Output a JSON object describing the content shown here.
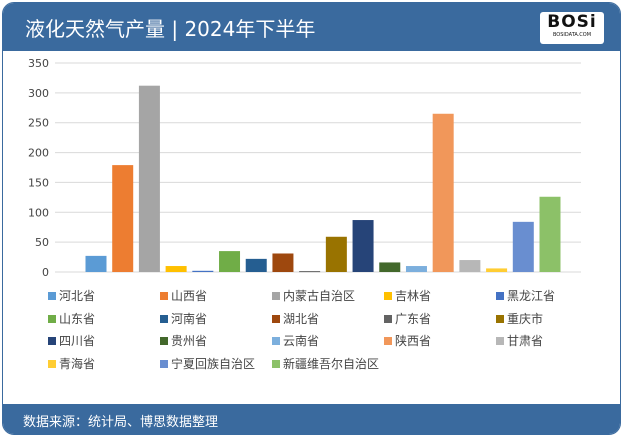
{
  "header": {
    "title": "液化天然气产量 | 2024年下半年",
    "logo_text": "BOSi",
    "logo_sub": "BOSIDATA.COM"
  },
  "footer": {
    "source": "数据来源：统计局、博思数据整理"
  },
  "chart_data": {
    "type": "bar",
    "title": "",
    "xlabel": "",
    "ylabel": "",
    "ylim": [
      0,
      350
    ],
    "yticks": [
      0,
      50,
      100,
      150,
      200,
      250,
      300,
      350
    ],
    "grid": true,
    "legend_position": "bottom",
    "series": [
      {
        "name": "河北省",
        "value": 27,
        "color": "#5b9bd5"
      },
      {
        "name": "山西省",
        "value": 179,
        "color": "#ed7d31"
      },
      {
        "name": "内蒙古自治区",
        "value": 312,
        "color": "#a5a5a5"
      },
      {
        "name": "吉林省",
        "value": 10,
        "color": "#ffc000"
      },
      {
        "name": "黑龙江省",
        "value": 2,
        "color": "#4472c4"
      },
      {
        "name": "山东省",
        "value": 35,
        "color": "#70ad47"
      },
      {
        "name": "河南省",
        "value": 22,
        "color": "#255e91"
      },
      {
        "name": "湖北省",
        "value": 31,
        "color": "#9e480e"
      },
      {
        "name": "广东省",
        "value": 1.5,
        "color": "#636363"
      },
      {
        "name": "重庆市",
        "value": 59,
        "color": "#997300"
      },
      {
        "name": "四川省",
        "value": 87,
        "color": "#264478"
      },
      {
        "name": "贵州省",
        "value": 16,
        "color": "#43682b"
      },
      {
        "name": "云南省",
        "value": 10,
        "color": "#7cafdd"
      },
      {
        "name": "陕西省",
        "value": 265,
        "color": "#f1975a"
      },
      {
        "name": "甘肃省",
        "value": 20,
        "color": "#b7b7b7"
      },
      {
        "name": "青海省",
        "value": 6,
        "color": "#ffcd33"
      },
      {
        "name": "宁夏回族自治区",
        "value": 84,
        "color": "#698ed0"
      },
      {
        "name": "新疆维吾尔自治区",
        "value": 126,
        "color": "#8cc168"
      }
    ]
  }
}
